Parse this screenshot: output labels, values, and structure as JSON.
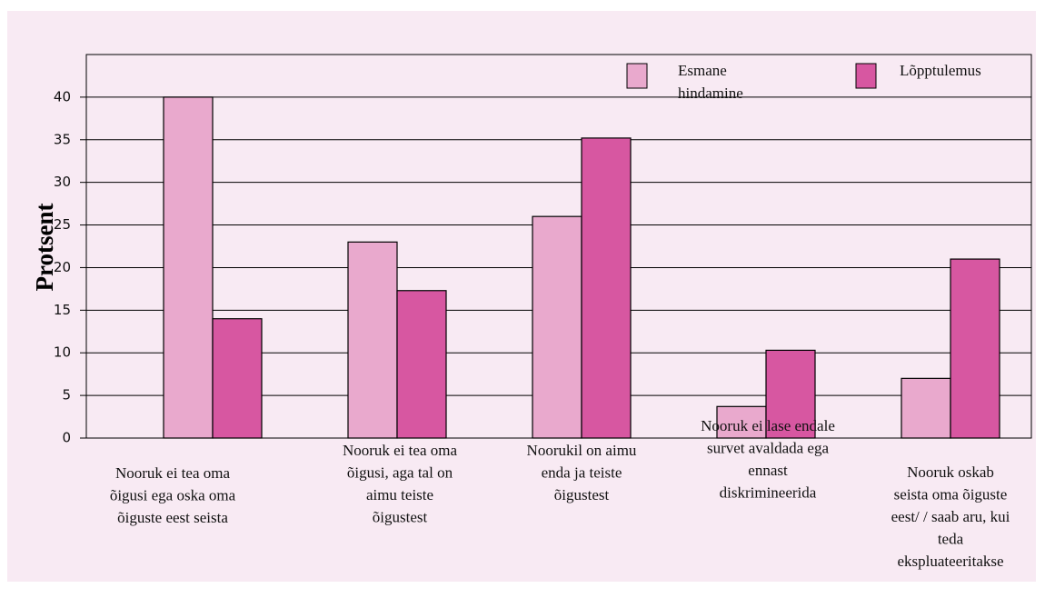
{
  "chart_data": {
    "type": "bar",
    "y_label": "Protsent",
    "categories": [
      "Nooruk ei  tea oma\nõigusi ega oska oma\nõiguste eest seista",
      "Nooruk ei tea oma\nõigusi, aga tal on\naimu teiste\nõigustest",
      "Noorukil on aimu\nenda ja teiste\nõigustest",
      "Nooruk ei lase endale\nsurvet avaldada ega\nennast\ndiskrimineerida",
      "Nooruk oskab\nseista oma õiguste\neest/ / saab aru, kui\nteda\nekspluateeritakse"
    ],
    "series": [
      {
        "name": "Esmane\nhindamine",
        "color": "#e9a9cd",
        "values": [
          40,
          23,
          26,
          3.7,
          7
        ]
      },
      {
        "name": "Lõpptulemus",
        "color": "#d757a1",
        "values": [
          14,
          17.3,
          35.2,
          10.3,
          21
        ]
      }
    ],
    "ylim": [
      0,
      45
    ],
    "yticks": [
      0,
      5,
      10,
      15,
      20,
      25,
      30,
      35,
      40
    ],
    "grid": true
  }
}
